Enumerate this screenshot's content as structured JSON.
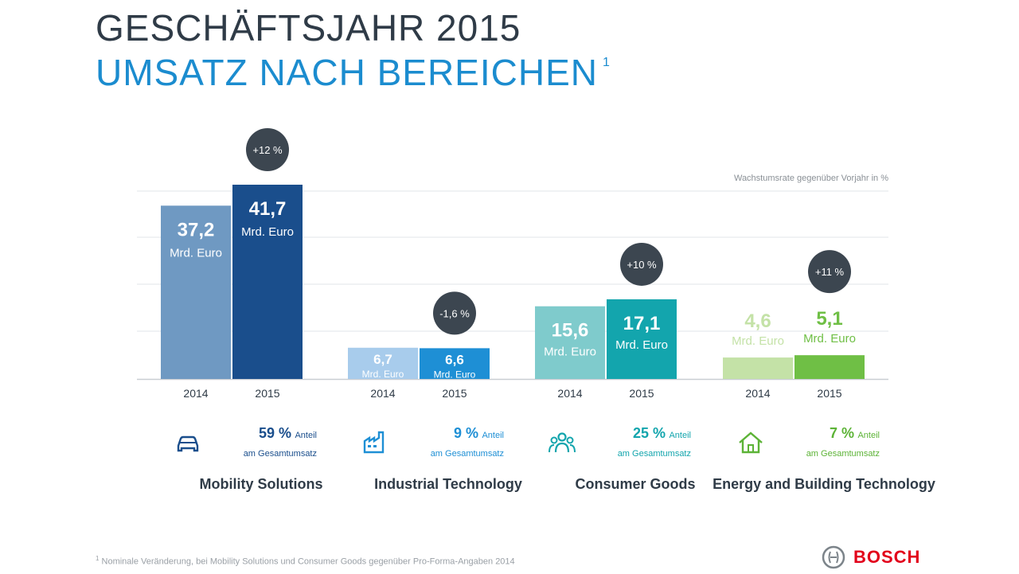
{
  "title": "GESCHÄFTSJAHR 2015",
  "subtitle": "UMSATZ NACH BEREICHEN",
  "subtitle_footnote_mark": "1",
  "growth_note": "Wachstumsrate gegenüber Vorjahr in %",
  "unit_label": "Mrd. Euro",
  "footnote_mark": "1",
  "footnote": "Nominale Veränderung, bei Mobility Solutions und Consumer Goods gegenüber Pro-Forma-Angaben 2014",
  "logo_text": "BOSCH",
  "colors": {
    "title": "#2f3b47",
    "subtitle": "#1b8ccf",
    "badge": "#3c4650",
    "mobility_2014": "#6f99c2",
    "mobility_2015": "#1a4e8c",
    "industrial_2014": "#a8ccec",
    "industrial_2015": "#1e8fd5",
    "consumer_2014": "#7fcbcc",
    "consumer_2015": "#13a5ad",
    "energy_2014": "#c4e2a7",
    "energy_2015": "#6fbf45"
  },
  "segments": [
    {
      "name": "Mobility Solutions",
      "share_pct": "59 %",
      "share_label": "Anteil",
      "share_sub": "am Gesamtumsatz",
      "icon": "car-icon",
      "color": "#1a4e8c"
    },
    {
      "name": "Industrial Technology",
      "share_pct": "9 %",
      "share_label": "Anteil",
      "share_sub": "am Gesamtumsatz",
      "icon": "factory-icon",
      "color": "#1e8fd5"
    },
    {
      "name": "Consumer Goods",
      "share_pct": "25 %",
      "share_label": "Anteil",
      "share_sub": "am Gesamtumsatz",
      "icon": "people-icon",
      "color": "#13a5ad"
    },
    {
      "name": "Energy and Building Technology",
      "share_pct": "7 %",
      "share_label": "Anteil",
      "share_sub": "am Gesamtumsatz",
      "icon": "house-icon",
      "color": "#5cb336"
    }
  ],
  "chart_data": {
    "type": "bar",
    "categories": [
      "Mobility Solutions",
      "Industrial Technology",
      "Consumer Goods",
      "Energy and Building Technology"
    ],
    "x_tick_labels": [
      "2014",
      "2015"
    ],
    "series": [
      {
        "name": "2014",
        "values": [
          37.2,
          6.7,
          15.6,
          4.6
        ],
        "labels": [
          "37,2",
          "6,7",
          "15,6",
          "4,6"
        ]
      },
      {
        "name": "2015",
        "values": [
          41.7,
          6.6,
          17.1,
          5.1
        ],
        "labels": [
          "41,7",
          "6,6",
          "17,1",
          "5,1"
        ]
      }
    ],
    "growth": [
      "+12 %",
      "-1,6 %",
      "+10 %",
      "+11 %"
    ],
    "ylim": [
      0,
      41.7
    ],
    "grid": true
  }
}
